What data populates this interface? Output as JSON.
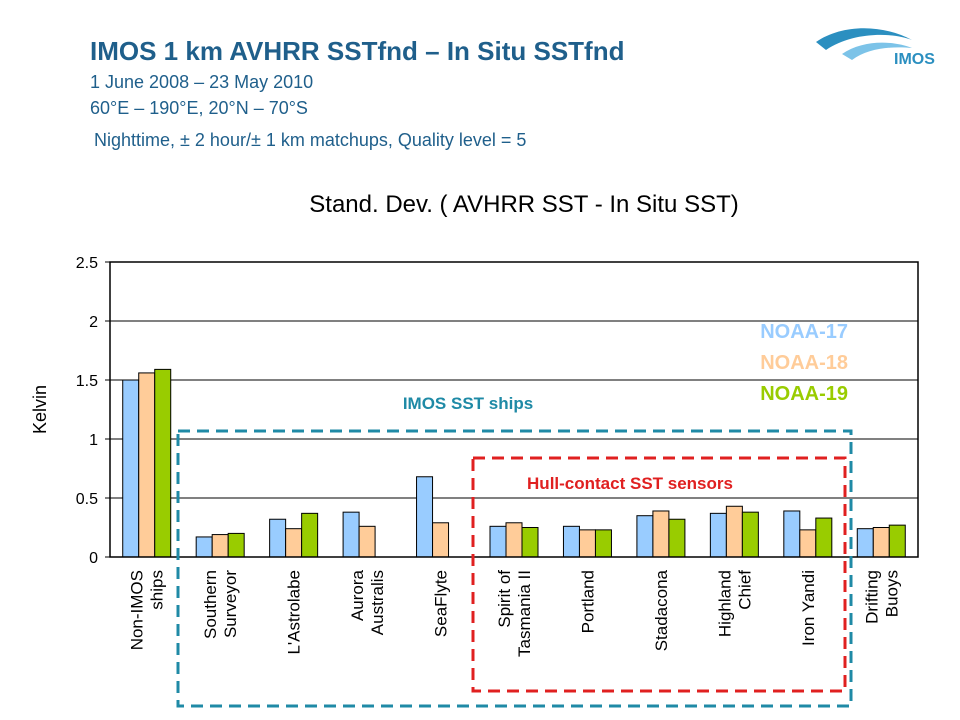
{
  "header": {
    "title": "IMOS 1 km AVHRR SSTfnd – In Situ SSTfnd",
    "date_range": "1 June 2008 – 23 May 2010",
    "region": "60°E – 190°E, 20°N – 70°S",
    "criteria": "Nighttime, ± 2 hour/± 1 km matchups, Quality level = 5",
    "logo_text": "IMOS"
  },
  "chart_data": {
    "type": "bar",
    "title": "Stand. Dev. ( AVHRR SST - In Situ SST)",
    "ylabel": "Kelvin",
    "xlabel": "",
    "ylim": [
      0,
      2.5
    ],
    "yticks": [
      "0",
      "0.5",
      "1",
      "1.5",
      "2",
      "2.5"
    ],
    "grid": true,
    "legend_placement": "right",
    "categories": [
      "Non-IMOS\nships",
      "Southern\nSurveyor",
      "L'Astrolabe",
      "Aurora\nAustralis",
      "SeaFlyte",
      "Spirit of\nTasmania II",
      "Portland",
      "Stadacona",
      "Highland\nChief",
      "Iron Yandi",
      "Drifting\nBuoys"
    ],
    "series": [
      {
        "name": "NOAA-17",
        "color": "#99ccff",
        "values": [
          1.5,
          0.17,
          0.32,
          0.38,
          0.68,
          0.26,
          0.26,
          0.35,
          0.37,
          0.39,
          0.24
        ]
      },
      {
        "name": "NOAA-18",
        "color": "#ffcc99",
        "values": [
          1.56,
          0.19,
          0.24,
          0.26,
          0.29,
          0.29,
          0.23,
          0.39,
          0.43,
          0.23,
          0.25
        ]
      },
      {
        "name": "NOAA-19",
        "color": "#99cc00",
        "values": [
          1.59,
          0.2,
          0.37,
          null,
          null,
          0.25,
          0.23,
          0.32,
          0.38,
          0.33,
          0.27
        ]
      }
    ],
    "annotations": [
      {
        "text": "IMOS SST ships",
        "color": "#1f8aa6"
      },
      {
        "text": "Hull-contact SST sensors",
        "color": "#e02020"
      }
    ],
    "legend_text_colors": [
      "#99ccff",
      "#ffcc99",
      "#99cc00"
    ]
  }
}
